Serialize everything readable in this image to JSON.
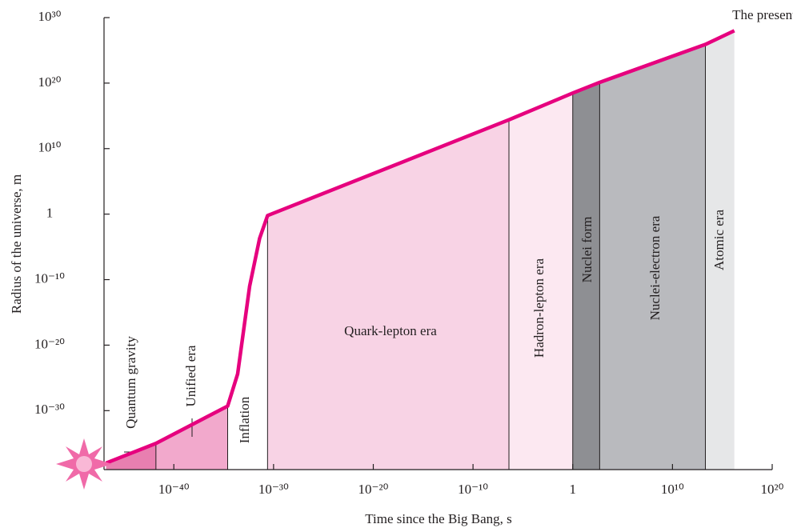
{
  "chart_data": {
    "type": "line",
    "xlabel": "Time since the Big Bang, s",
    "ylabel": "Radius of the universe, m",
    "annotation": "The present",
    "xscale": "log",
    "yscale": "log",
    "xlim": [
      1e-47,
      1e+20
    ],
    "ylim": [
      1e-39,
      1e+30
    ],
    "xticks": [
      {
        "value": 1e-40,
        "label": "10⁻⁴⁰"
      },
      {
        "value": 1e-30,
        "label": "10⁻³⁰"
      },
      {
        "value": 1e-20,
        "label": "10⁻²⁰"
      },
      {
        "value": 1e-10,
        "label": "10⁻¹⁰"
      },
      1,
      {
        "value": 10000000000.0,
        "label": "10¹⁰"
      },
      {
        "value": 1e+20,
        "label": "10²⁰"
      }
    ],
    "yticks": [
      {
        "value": 1e-30,
        "label": "10⁻³⁰"
      },
      {
        "value": 1e-20,
        "label": "10⁻²⁰"
      },
      {
        "value": 1e-10,
        "label": "10⁻¹⁰"
      },
      1,
      {
        "value": 10000000000.0,
        "label": "10¹⁰"
      },
      {
        "value": 1e+20,
        "label": "10²⁰"
      },
      {
        "value": 1e+30,
        "label": "10³⁰"
      }
    ],
    "x": [
      1.6e-47,
      1.6e-42,
      2.5e-35,
      2.5e-34,
      4e-33,
      4e-32,
      2.5e-31,
      4e-07,
      1,
      500,
      20000000000000.0,
      1.6e+16
    ],
    "series": [
      {
        "color": "#e6007e",
        "values": [
          1e-38,
          1e-35,
          5e-30,
          4e-25,
          1e-11,
          0.0002,
          0.6,
          250000000000000.0,
          3e+18,
          1.3e+20,
          8e+25,
          1e+28
        ]
      }
    ],
    "eras": [
      {
        "name": "Quantum gravity",
        "start": 1.6e-47,
        "end": 1.6e-42,
        "color": "#e87fb0"
      },
      {
        "name": "Unified era",
        "start": 1.6e-42,
        "end": 2.5e-35,
        "color": "#f2a9cc"
      },
      {
        "name": "Inflation",
        "start": 2.5e-35,
        "end": 2.5e-31,
        "color": "#ffffff"
      },
      {
        "name": "Quark-lepton era",
        "start": 2.5e-31,
        "end": 4e-07,
        "color": "#f8d3e5"
      },
      {
        "name": "Hadron-lepton era",
        "start": 4e-07,
        "end": 1,
        "color": "#fce8f1"
      },
      {
        "name": "Nuclei form",
        "start": 1,
        "end": 500,
        "color": "#8e8f93"
      },
      {
        "name": "Nuclei-electron era",
        "start": 500,
        "end": 20000000000000.0,
        "color": "#b9babe"
      },
      {
        "name": "Atomic era",
        "start": 20000000000000.0,
        "end": 1.6e+16,
        "color": "#e6e7e8"
      }
    ]
  }
}
